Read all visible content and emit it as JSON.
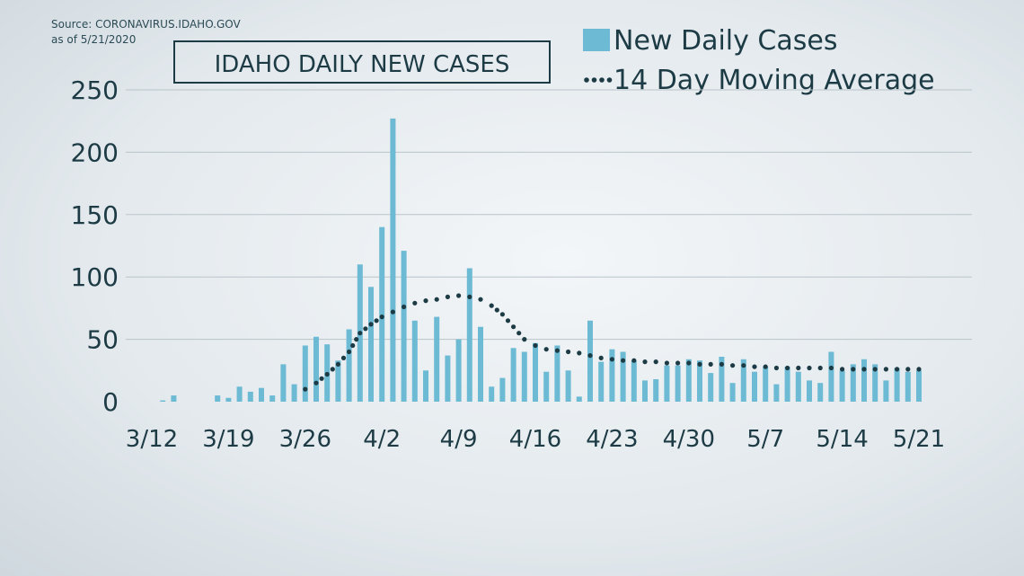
{
  "source_lines": [
    "Source: CORONAVIRUS.IDAHO.GOV",
    "as of 5/21/2020"
  ],
  "colors": {
    "bar": "#6cbad3",
    "text": "#1d3b45",
    "grid": "#b9c4ca"
  },
  "chart_data": {
    "type": "bar",
    "title": "IDAHO DAILY NEW CASES",
    "legend": {
      "placement": "top-right",
      "entries": [
        {
          "label": "New Daily Cases",
          "marker": "bar"
        },
        {
          "label": "14 Day Moving Average",
          "marker": "dotted-line"
        }
      ]
    },
    "ylim": [
      0,
      250
    ],
    "yticks": [
      0,
      50,
      100,
      150,
      200,
      250
    ],
    "grid": true,
    "xlim": [
      "3/12",
      "5/21"
    ],
    "xtick_labels": [
      "3/12",
      "3/19",
      "3/26",
      "4/2",
      "4/9",
      "4/16",
      "4/23",
      "4/30",
      "5/7",
      "5/14",
      "5/21"
    ],
    "categories": [
      "3/13",
      "3/14",
      "3/15",
      "3/16",
      "3/17",
      "3/18",
      "3/19",
      "3/20",
      "3/21",
      "3/22",
      "3/23",
      "3/24",
      "3/25",
      "3/26",
      "3/27",
      "3/28",
      "3/29",
      "3/30",
      "3/31",
      "4/1",
      "4/2",
      "4/3",
      "4/4",
      "4/5",
      "4/6",
      "4/7",
      "4/8",
      "4/9",
      "4/10",
      "4/11",
      "4/12",
      "4/13",
      "4/14",
      "4/15",
      "4/16",
      "4/17",
      "4/18",
      "4/19",
      "4/20",
      "4/21",
      "4/22",
      "4/23",
      "4/24",
      "4/25",
      "4/26",
      "4/27",
      "4/28",
      "4/29",
      "4/30",
      "5/1",
      "5/2",
      "5/3",
      "5/4",
      "5/5",
      "5/6",
      "5/7",
      "5/8",
      "5/9",
      "5/10",
      "5/11",
      "5/12",
      "5/13",
      "5/14",
      "5/15",
      "5/16",
      "5/17",
      "5/18",
      "5/19",
      "5/20",
      "5/21"
    ],
    "series": [
      {
        "name": "New Daily Cases",
        "values": [
          1,
          5,
          0,
          0,
          0,
          5,
          3,
          12,
          8,
          11,
          5,
          30,
          14,
          45,
          52,
          46,
          33,
          58,
          110,
          92,
          140,
          227,
          121,
          65,
          25,
          68,
          37,
          50,
          107,
          60,
          12,
          19,
          43,
          40,
          47,
          24,
          45,
          25,
          4,
          65,
          32,
          42,
          40,
          33,
          17,
          18,
          29,
          29,
          34,
          33,
          23,
          36,
          15,
          34,
          24,
          28,
          14,
          28,
          24,
          17,
          15,
          40,
          25,
          30,
          34,
          30,
          17,
          27,
          24,
          25
        ],
        "marker": "bar"
      },
      {
        "name": "14 Day Moving Average",
        "values": [
          null,
          null,
          null,
          null,
          null,
          null,
          null,
          null,
          null,
          null,
          null,
          null,
          null,
          10,
          15,
          22,
          30,
          40,
          55,
          62,
          68,
          72,
          76,
          79,
          81,
          82,
          84,
          85,
          84,
          82,
          77,
          70,
          60,
          50,
          45,
          42,
          41,
          40,
          39,
          37,
          35,
          34,
          33,
          33,
          32,
          32,
          31,
          31,
          31,
          30,
          30,
          30,
          29,
          29,
          28,
          28,
          27,
          27,
          27,
          27,
          27,
          27,
          26,
          26,
          26,
          26,
          26,
          26,
          26,
          26
        ],
        "marker": "dotted-line"
      }
    ]
  }
}
